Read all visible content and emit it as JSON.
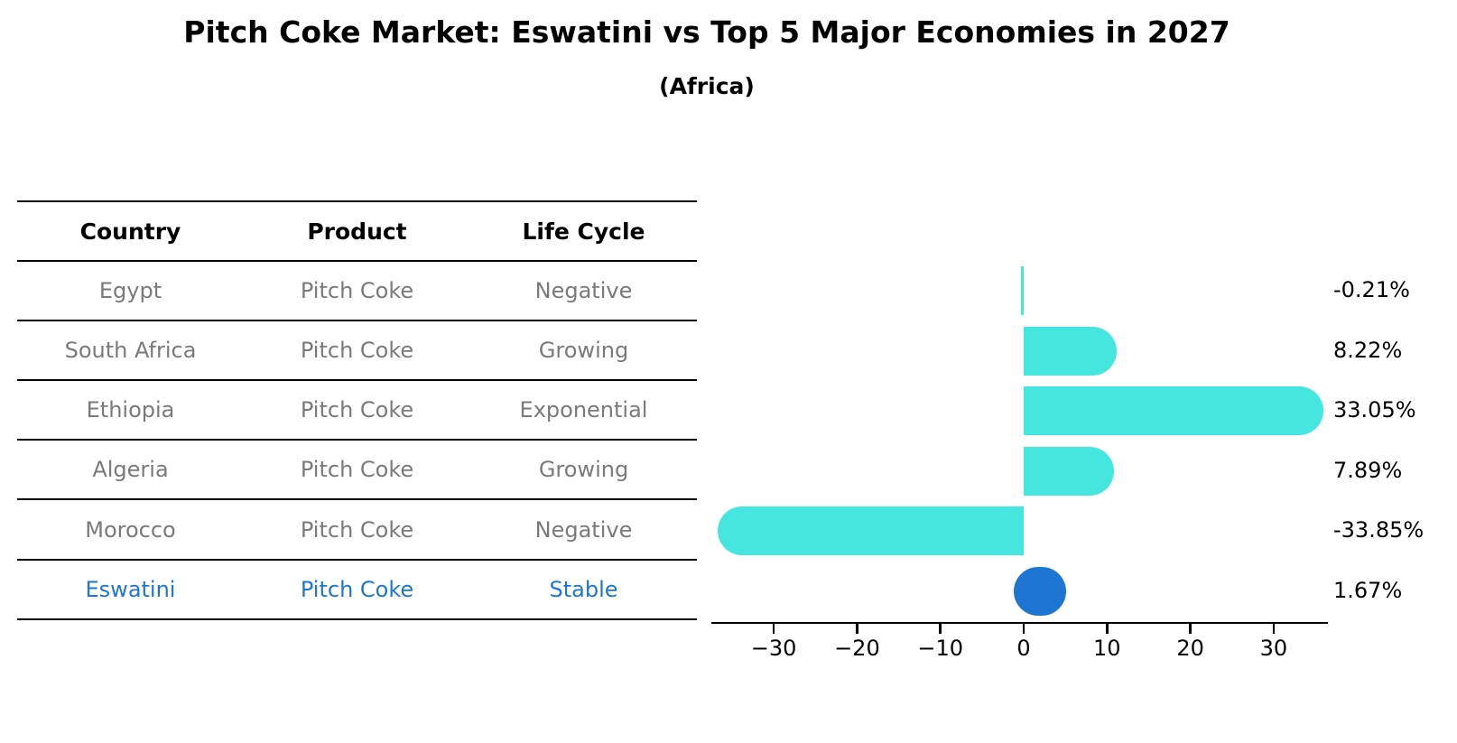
{
  "title": "Pitch Coke Market: Eswatini vs Top 5 Major Economies in 2027",
  "subtitle": "(Africa)",
  "table": {
    "headers": [
      "Country",
      "Product",
      "Life Cycle"
    ],
    "rows": [
      {
        "country": "Egypt",
        "product": "Pitch Coke",
        "life_cycle": "Negative",
        "highlight": false
      },
      {
        "country": "South Africa",
        "product": "Pitch Coke",
        "life_cycle": "Growing",
        "highlight": false
      },
      {
        "country": "Ethiopia",
        "product": "Pitch Coke",
        "life_cycle": "Exponential",
        "highlight": false
      },
      {
        "country": "Algeria",
        "product": "Pitch Coke",
        "life_cycle": "Growing",
        "highlight": false
      },
      {
        "country": "Morocco",
        "product": "Pitch Coke",
        "life_cycle": "Negative",
        "highlight": false
      },
      {
        "country": "Eswatini",
        "product": "Pitch Coke",
        "life_cycle": "Stable",
        "highlight": true
      }
    ]
  },
  "chart_data": {
    "type": "bar",
    "orientation": "horizontal",
    "title": "Pitch Coke Market: Eswatini vs Top 5 Major Economies in 2027 (Africa)",
    "categories": [
      "Egypt",
      "South Africa",
      "Ethiopia",
      "Algeria",
      "Morocco",
      "Eswatini"
    ],
    "values": [
      -0.21,
      8.22,
      33.05,
      7.89,
      -33.85,
      1.67
    ],
    "value_labels": [
      "-0.21%",
      "8.22%",
      "33.05%",
      "7.89%",
      "-33.85%",
      "1.67%"
    ],
    "unit": "%",
    "bar_color": "#45E5E0",
    "highlight_color": "#1E76D2",
    "highlight_index": 5,
    "xlim": [
      -37.2,
      36.4
    ],
    "xtick_values": [
      -30,
      -20,
      -10,
      0,
      10,
      20,
      30
    ],
    "xtick_labels": [
      "−30",
      "−20",
      "−10",
      "0",
      "10",
      "20",
      "30"
    ],
    "grid": false,
    "legend": false
  },
  "colors": {
    "background": "#ffffff",
    "table_text": "#7a7a7a",
    "header_text": "#000000",
    "highlight": "#1E76D2",
    "bar": "#45E5E0",
    "axis": "#000000"
  }
}
